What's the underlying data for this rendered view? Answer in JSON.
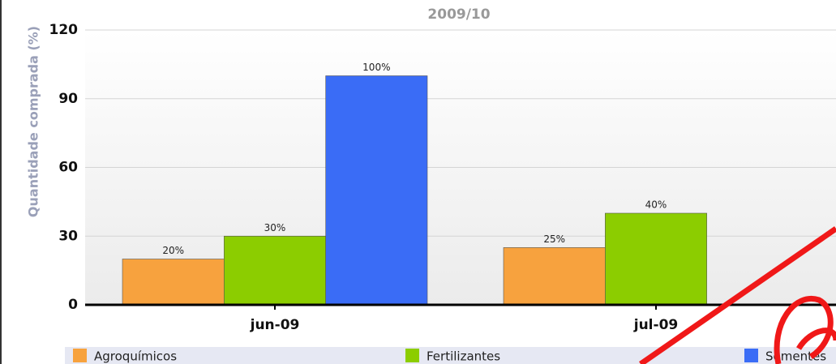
{
  "chart_data": {
    "type": "bar",
    "title": "2009/10",
    "y_label": "Quantidade comprada (%)",
    "categories": [
      "jun-09",
      "jul-09"
    ],
    "series": [
      {
        "name": "Agroquímicos",
        "color": "#f7a23e",
        "values": [
          20,
          25
        ],
        "value_labels": [
          "20%",
          "25%"
        ]
      },
      {
        "name": "Fertilizantes",
        "color": "#8ccd00",
        "values": [
          30,
          40
        ],
        "value_labels": [
          "30%",
          "40%"
        ]
      },
      {
        "name": "Sementes",
        "color": "#3a6cf6",
        "values": [
          100,
          null
        ],
        "value_labels": [
          "100%",
          null
        ]
      }
    ],
    "ylim": [
      0,
      120
    ],
    "yticks": [
      0,
      30,
      60,
      90,
      120
    ],
    "grid": true
  }
}
